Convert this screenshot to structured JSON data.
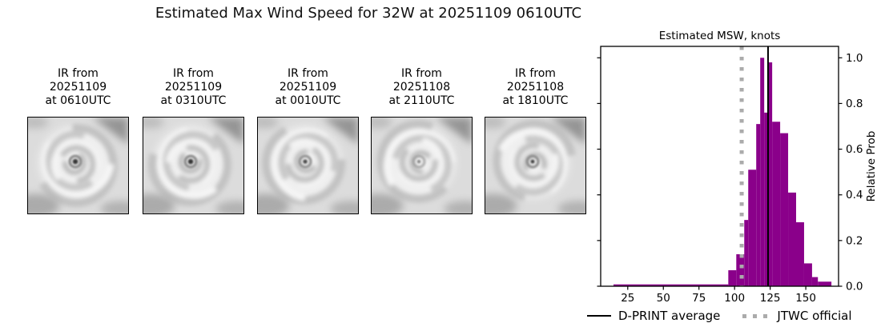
{
  "figure": {
    "title": "Estimated Max Wind Speed for 32W at 20251109 0610UTC"
  },
  "panels": [
    {
      "caption_lines": [
        "IR from",
        "20251109",
        "at 0610UTC"
      ],
      "image_desc": "IR satellite image of tropical cyclone 32W"
    },
    {
      "caption_lines": [
        "IR from",
        "20251109",
        "at 0310UTC"
      ],
      "image_desc": "IR satellite image of tropical cyclone 32W"
    },
    {
      "caption_lines": [
        "IR from",
        "20251109",
        "at 0010UTC"
      ],
      "image_desc": "IR satellite image of tropical cyclone 32W"
    },
    {
      "caption_lines": [
        "IR from",
        "20251108",
        "at 2110UTC"
      ],
      "image_desc": "IR satellite image of tropical cyclone 32W"
    },
    {
      "caption_lines": [
        "IR from",
        "20251108",
        "at 1810UTC"
      ],
      "image_desc": "IR satellite image of tropical cyclone 32W"
    }
  ],
  "chart_data": {
    "type": "bar",
    "title": "Estimated MSW, knots",
    "ylabel": "Relative Prob",
    "xlim": [
      6,
      173
    ],
    "ylim": [
      0,
      1.05
    ],
    "x_ticks": [
      25,
      50,
      75,
      100,
      125,
      150
    ],
    "y_ticks": [
      0.0,
      0.2,
      0.4,
      0.6,
      0.8,
      1.0
    ],
    "y_axis_side": "right",
    "grid": false,
    "bar_color": "#8A008A",
    "avg_line_color": "#000000",
    "official_line_color": "#ababab",
    "bins": [
      {
        "from_kt": 15.0,
        "to_kt": 95.6,
        "prob": 0.008
      },
      {
        "from_kt": 95.6,
        "to_kt": 101.2,
        "prob": 0.07
      },
      {
        "from_kt": 101.2,
        "to_kt": 106.8,
        "prob": 0.14
      },
      {
        "from_kt": 106.8,
        "to_kt": 109.6,
        "prob": 0.29
      },
      {
        "from_kt": 109.6,
        "to_kt": 115.2,
        "prob": 0.51
      },
      {
        "from_kt": 115.2,
        "to_kt": 118.0,
        "prob": 0.71
      },
      {
        "from_kt": 118.0,
        "to_kt": 120.8,
        "prob": 1.0
      },
      {
        "from_kt": 120.8,
        "to_kt": 123.6,
        "prob": 0.76
      },
      {
        "from_kt": 123.6,
        "to_kt": 126.4,
        "prob": 0.98
      },
      {
        "from_kt": 126.4,
        "to_kt": 132.0,
        "prob": 0.72
      },
      {
        "from_kt": 132.0,
        "to_kt": 137.6,
        "prob": 0.67
      },
      {
        "from_kt": 137.6,
        "to_kt": 143.2,
        "prob": 0.41
      },
      {
        "from_kt": 143.2,
        "to_kt": 148.8,
        "prob": 0.28
      },
      {
        "from_kt": 148.8,
        "to_kt": 154.4,
        "prob": 0.1
      },
      {
        "from_kt": 154.4,
        "to_kt": 158.5,
        "prob": 0.04
      },
      {
        "from_kt": 158.5,
        "to_kt": 168.0,
        "prob": 0.02
      }
    ],
    "d_print_average_kt": 123.5,
    "jtwc_official_kt": 105,
    "legend": [
      {
        "label": "D-PRINT average",
        "style": "solid-black-line"
      },
      {
        "label": "JTWC official",
        "style": "dotted-gray-line"
      }
    ]
  }
}
